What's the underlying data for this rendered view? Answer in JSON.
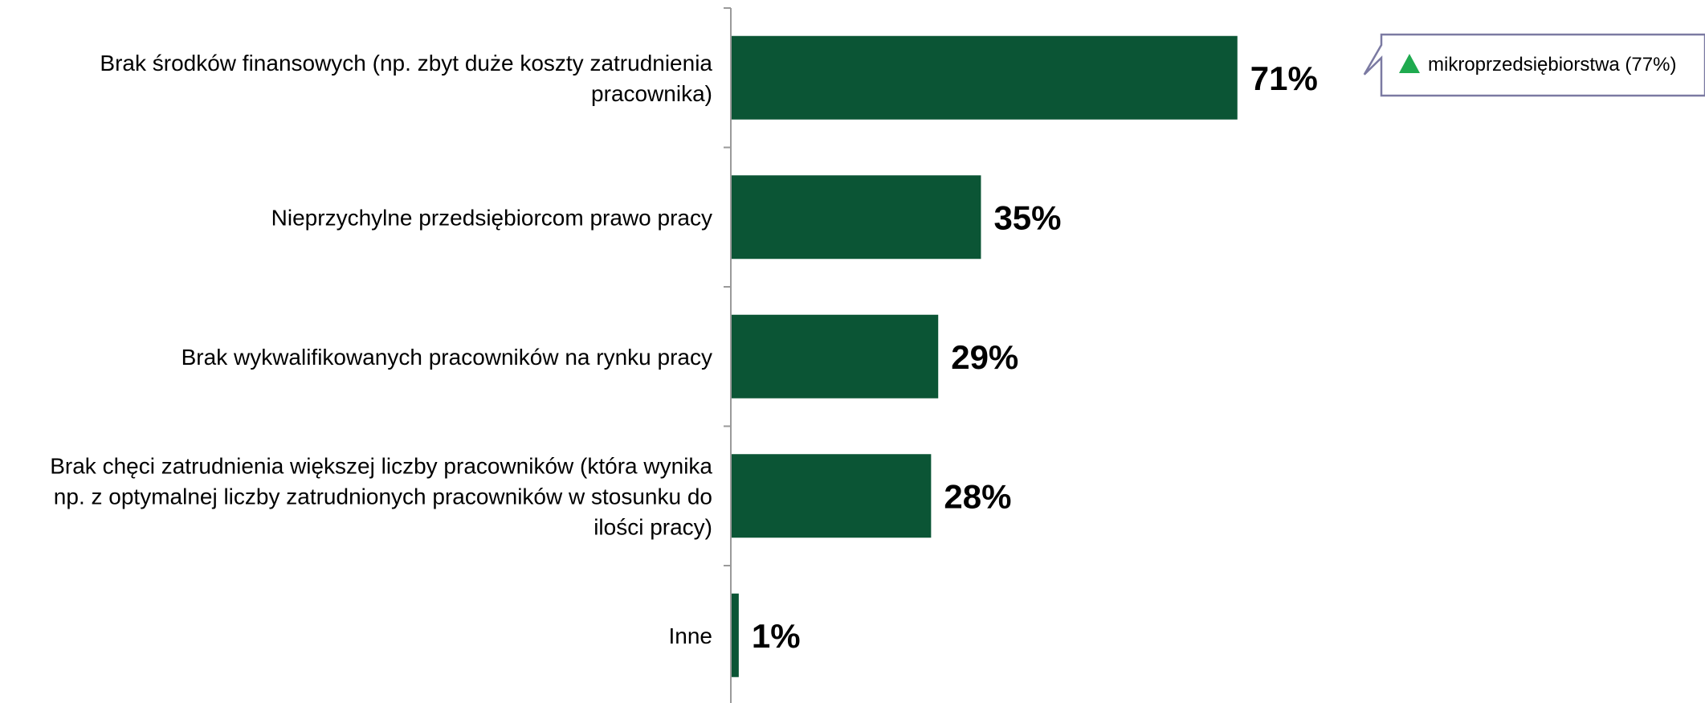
{
  "chart_data": {
    "type": "bar",
    "orientation": "horizontal",
    "categories": [
      "Brak środków finansowych (np. zbyt duże koszty zatrudnienia pracownika)",
      "Nieprzychylne przedsiębiorcom prawo pracy",
      "Brak wykwalifikowanych pracowników na rynku pracy",
      "Brak chęci zatrudnienia większej liczby pracowników (która wynika np. z optymalnej liczby zatrudnionych pracowników w stosunku do ilości pracy)",
      "Inne"
    ],
    "category_lines": [
      [
        "Brak środków finansowych (np. zbyt duże koszty zatrudnienia",
        "pracownika)"
      ],
      [
        "Nieprzychylne przedsiębiorcom prawo pracy"
      ],
      [
        "Brak wykwalifikowanych pracowników na rynku pracy"
      ],
      [
        "Brak chęci zatrudnienia większej liczby pracowników (która wynika",
        "np. z optymalnej liczby zatrudnionych pracowników w stosunku do",
        "ilości pracy)"
      ],
      [
        "Inne"
      ]
    ],
    "values": [
      71,
      35,
      29,
      28,
      1
    ],
    "value_labels": [
      "71%",
      "35%",
      "29%",
      "28%",
      "1%"
    ],
    "xlim": [
      0,
      100
    ],
    "grid": false,
    "bar_color": "#0b5535",
    "annotations": [
      {
        "category_index": 0,
        "text": "mikroprzedsiębiorstwa (77%)",
        "marker": "triangle-up",
        "marker_color": "#1faa4f",
        "border_color": "#7b7aa2"
      }
    ]
  }
}
